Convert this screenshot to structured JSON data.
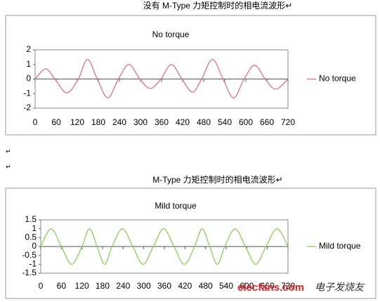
{
  "captions": [
    "没有 M-Type 力矩控制时的相电流波形↵",
    "M-Type 力矩控制时的相电流波形↵"
  ],
  "paragraph_marks": [
    "↵",
    "↵"
  ],
  "watermark": [
    "elecfans.com",
    "电子发烧友"
  ],
  "chart_data": [
    {
      "type": "line",
      "title": "No torque",
      "x": [
        0,
        30,
        56,
        90,
        123,
        149,
        177,
        207,
        237,
        267,
        298,
        328,
        358,
        388,
        418,
        448,
        474,
        505,
        535,
        565,
        595,
        625,
        655,
        685,
        720
      ],
      "series": [
        {
          "name": "No torque",
          "color": "#e0708a",
          "values": [
            0,
            0.7,
            0,
            -0.95,
            0,
            1.35,
            0,
            -1.3,
            0,
            1.0,
            0,
            -0.65,
            0,
            1.0,
            0,
            -0.9,
            0,
            1.35,
            0,
            -1.3,
            0,
            0.95,
            0,
            -0.7,
            0
          ]
        }
      ],
      "xlim": [
        0,
        720
      ],
      "xticks": [
        0,
        60,
        120,
        180,
        240,
        300,
        360,
        420,
        480,
        540,
        600,
        660,
        720
      ],
      "ylim": [
        -2,
        2
      ],
      "yticks": [
        -2,
        -1,
        0,
        1,
        2
      ],
      "legend": "right"
    },
    {
      "type": "line",
      "title": "Mild torque",
      "x": [
        0,
        30,
        60,
        90,
        120,
        142,
        164,
        186,
        208,
        238,
        268,
        298,
        328,
        358,
        388,
        418,
        448,
        470,
        492,
        514,
        536,
        566,
        596,
        626,
        656,
        688,
        720
      ],
      "series": [
        {
          "name": "Mild torque",
          "color": "#8fce5a",
          "values": [
            0,
            1,
            0,
            -1,
            0,
            1,
            0,
            -1,
            0,
            1,
            0,
            -1,
            0,
            1,
            0,
            -1,
            0,
            1,
            0,
            -1,
            0,
            1,
            0,
            -1,
            0,
            1,
            0
          ]
        }
      ],
      "xlim": [
        0,
        720
      ],
      "xticks": [
        0,
        60,
        120,
        180,
        240,
        300,
        360,
        420,
        480,
        540,
        600,
        660,
        720
      ],
      "ylim": [
        -1.5,
        1.5
      ],
      "yticks": [
        -1.5,
        -1,
        -0.5,
        0,
        0.5,
        1,
        1.5
      ],
      "legend": "right"
    }
  ]
}
